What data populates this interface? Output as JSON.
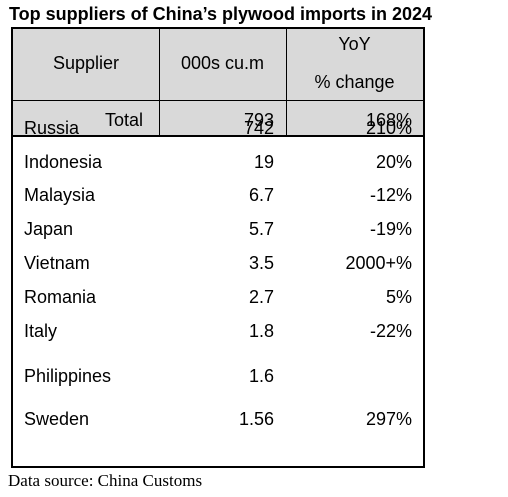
{
  "chart_data": {
    "type": "table",
    "title": "Top suppliers of China’s plywood imports in 2024",
    "columns": [
      "Supplier",
      "000s cu.m",
      "YoY",
      "% change"
    ],
    "total": {
      "label": "Total",
      "volume": "793",
      "change": "168%"
    },
    "rows": [
      {
        "supplier": "Russia",
        "volume": "742",
        "change": "210%"
      },
      {
        "supplier": "Indonesia",
        "volume": "19",
        "change": "20%"
      },
      {
        "supplier": "Malaysia",
        "volume": "6.7",
        "change": "-12%"
      },
      {
        "supplier": "Japan",
        "volume": "5.7",
        "change": "-19%"
      },
      {
        "supplier": "Vietnam",
        "volume": "3.5",
        "change": "2000+%"
      },
      {
        "supplier": "Romania",
        "volume": "2.7",
        "change": "5%"
      },
      {
        "supplier": "Italy",
        "volume": "1.8",
        "change": "-22%"
      },
      {
        "supplier": "Philippines",
        "volume": "1.6",
        "change": ""
      },
      {
        "supplier": "Sweden",
        "volume": "1.56",
        "change": "297%"
      }
    ],
    "source": "Data source: China Customs"
  }
}
